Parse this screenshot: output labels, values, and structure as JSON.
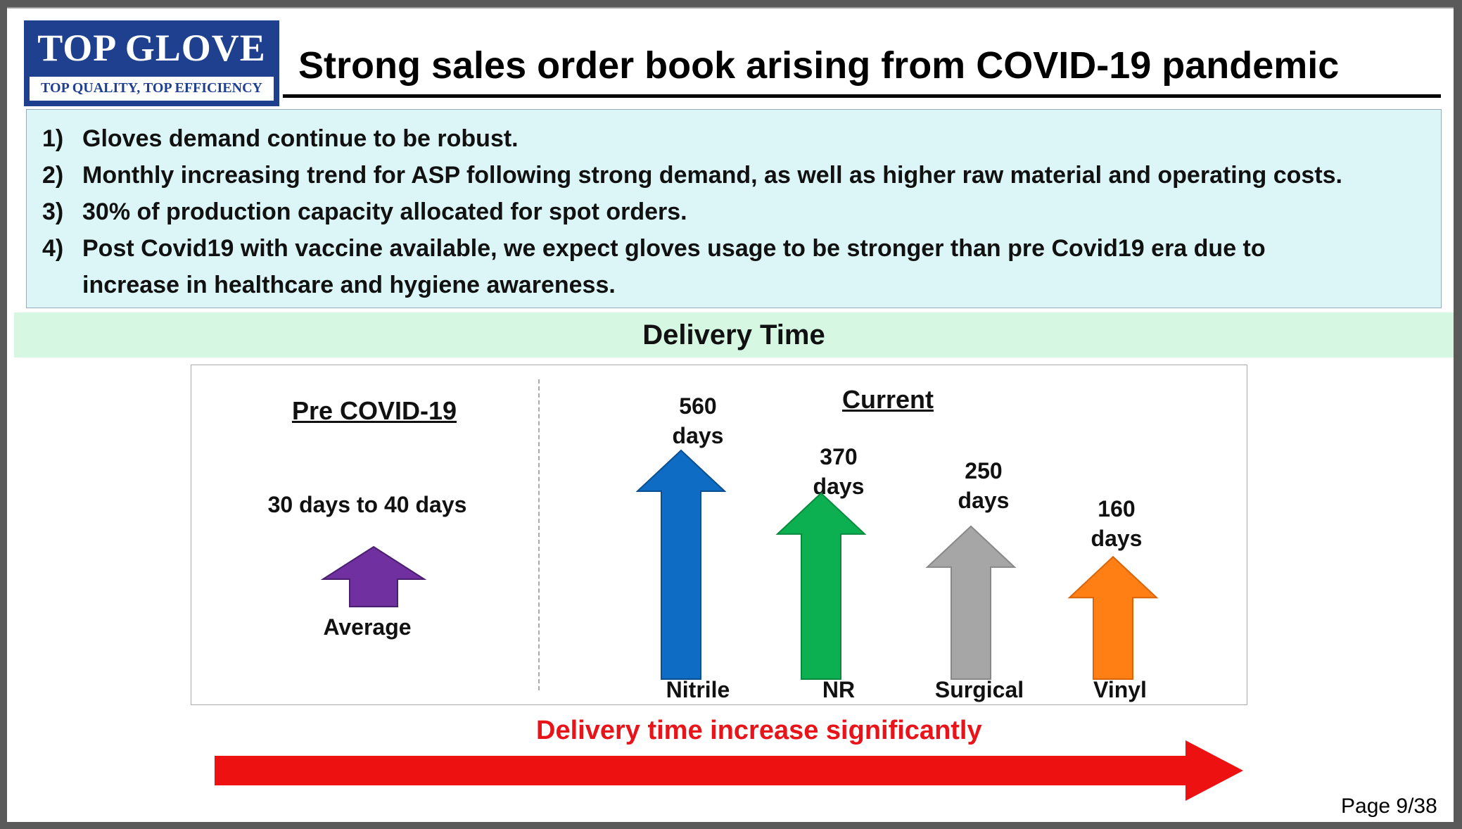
{
  "logo": {
    "name": "TOP GLOVE",
    "tagline": "TOP QUALITY, TOP EFFICIENCY"
  },
  "title": "Strong sales order book arising from COVID-19 pandemic",
  "points": [
    {
      "num": "1)",
      "lines": [
        "Gloves demand continue to be robust."
      ]
    },
    {
      "num": "2)",
      "lines": [
        "Monthly increasing trend for ASP following strong demand, as well as higher raw material and operating costs."
      ]
    },
    {
      "num": "3)",
      "lines": [
        "30% of production capacity allocated for spot orders."
      ]
    },
    {
      "num": "4)",
      "lines": [
        "Post Covid19 with vaccine available, we expect gloves usage to be stronger than pre Covid19 era due to",
        "increase in healthcare and hygiene awareness."
      ]
    }
  ],
  "section_title": "Delivery Time",
  "pre_covid": {
    "heading": "Pre COVID-19",
    "value": "30 days to 40 days",
    "label": "Average",
    "color": "#7030a0"
  },
  "current": {
    "heading": "Current",
    "items": [
      {
        "name": "Nitrile",
        "value_line1": "560",
        "value_line2": "days",
        "days": 560,
        "color": "#0f6cc4"
      },
      {
        "name": "NR",
        "value_line1": "370",
        "value_line2": "days",
        "days": 370,
        "color": "#0cb050"
      },
      {
        "name": "Surgical",
        "value_line1": "250",
        "value_line2": "days",
        "days": 250,
        "color": "#a6a6a6"
      },
      {
        "name": "Vinyl",
        "value_line1": "160",
        "value_line2": "days",
        "days": 160,
        "color": "#ff7f14"
      }
    ]
  },
  "trend": {
    "label": "Delivery time increase significantly",
    "color": "#ee1111"
  },
  "page": "Page 9/38"
}
